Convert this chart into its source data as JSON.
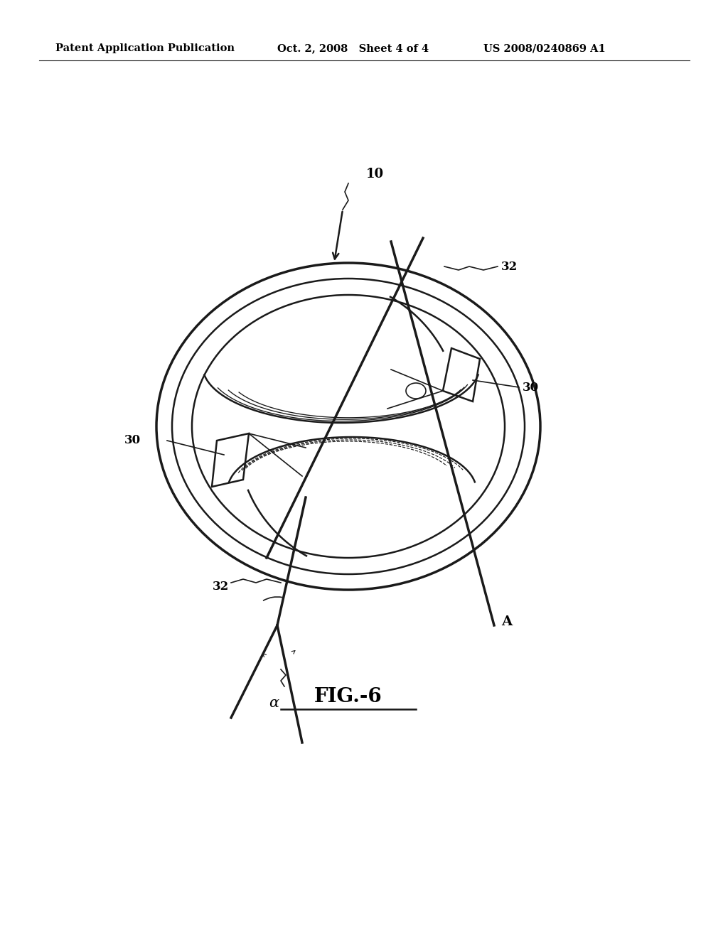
{
  "header_left": "Patent Application Publication",
  "header_middle": "Oct. 2, 2008   Sheet 4 of 4",
  "header_right": "US 2008/0240869 A1",
  "background_color": "#ffffff",
  "line_color": "#1a1a1a",
  "label_10": "10",
  "label_30a": "30",
  "label_30b": "30",
  "label_32a": "32",
  "label_32b": "32",
  "label_A": "A",
  "label_alpha": "α",
  "fig_label": "FIG.-6"
}
